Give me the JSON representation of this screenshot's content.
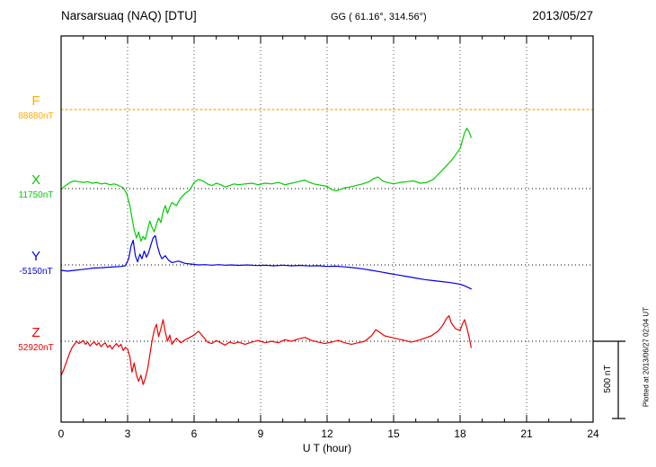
{
  "header": {
    "station": "Narsarsuaq (NAQ)  [DTU]",
    "gg": "GG ( 61.16°, 314.56°)",
    "date": "2013/05/27"
  },
  "axis": {
    "xlabel": "U T (hour)",
    "xticks": [
      0,
      3,
      6,
      9,
      12,
      15,
      18,
      21,
      24
    ],
    "grid_hours": [
      3,
      6,
      9,
      12,
      15,
      18,
      21
    ],
    "xmin": 0,
    "xmax": 24
  },
  "scalebar": {
    "label": "500 nT",
    "nT": 500
  },
  "footer_rotated": "Plotted at 2013/06/27 02:04 UT",
  "colors": {
    "F": "#ffaa00",
    "X": "#00cc00",
    "Y": "#0000ee",
    "Z": "#ee0000",
    "grid": "#555555",
    "frame": "#000000"
  },
  "channels": [
    {
      "id": "F",
      "label": "F",
      "value_label": "88880nT",
      "base": 88880
    },
    {
      "id": "X",
      "label": "X",
      "value_label": "11750nT",
      "base": 11750
    },
    {
      "id": "Y",
      "label": "Y",
      "value_label": "-5150nT",
      "base": -5150
    },
    {
      "id": "Z",
      "label": "Z",
      "value_label": "52920nT",
      "base": 52920
    }
  ],
  "chart_data": {
    "type": "line",
    "title": "Narsarsuaq (NAQ) magnetogram 2013/05/27",
    "xlabel": "U T (hour)",
    "xlim": [
      0,
      24
    ],
    "grid": "dotted baselines per channel, vertical dotted lines every 3 hours",
    "scale_nT_per_division": 500,
    "series": [
      {
        "name": "F",
        "channel": "F",
        "base": 88880,
        "style": "dotted",
        "points": [
          [
            0,
            88880
          ],
          [
            24,
            88880
          ]
        ]
      },
      {
        "name": "X",
        "channel": "X",
        "base": 11750,
        "style": "solid",
        "points": [
          [
            0,
            11745
          ],
          [
            0.2,
            11770
          ],
          [
            0.4,
            11790
          ],
          [
            0.6,
            11800
          ],
          [
            0.8,
            11795
          ],
          [
            1.0,
            11790
          ],
          [
            1.2,
            11795
          ],
          [
            1.4,
            11785
          ],
          [
            1.6,
            11790
          ],
          [
            1.8,
            11780
          ],
          [
            2.0,
            11785
          ],
          [
            2.2,
            11775
          ],
          [
            2.4,
            11780
          ],
          [
            2.6,
            11770
          ],
          [
            2.8,
            11755
          ],
          [
            2.95,
            11720
          ],
          [
            3.1,
            11640
          ],
          [
            3.2,
            11560
          ],
          [
            3.3,
            11480
          ],
          [
            3.4,
            11430
          ],
          [
            3.5,
            11470
          ],
          [
            3.6,
            11410
          ],
          [
            3.7,
            11440
          ],
          [
            3.8,
            11420
          ],
          [
            3.9,
            11480
          ],
          [
            4.0,
            11540
          ],
          [
            4.1,
            11500
          ],
          [
            4.2,
            11470
          ],
          [
            4.3,
            11520
          ],
          [
            4.4,
            11560
          ],
          [
            4.5,
            11530
          ],
          [
            4.6,
            11600
          ],
          [
            4.7,
            11640
          ],
          [
            4.8,
            11590
          ],
          [
            4.9,
            11630
          ],
          [
            5.0,
            11660
          ],
          [
            5.2,
            11640
          ],
          [
            5.4,
            11690
          ],
          [
            5.6,
            11720
          ],
          [
            5.8,
            11740
          ],
          [
            6.0,
            11790
          ],
          [
            6.2,
            11810
          ],
          [
            6.4,
            11800
          ],
          [
            6.6,
            11780
          ],
          [
            6.8,
            11770
          ],
          [
            7.0,
            11785
          ],
          [
            7.2,
            11775
          ],
          [
            7.4,
            11760
          ],
          [
            7.6,
            11770
          ],
          [
            7.8,
            11780
          ],
          [
            8.0,
            11775
          ],
          [
            8.3,
            11780
          ],
          [
            8.6,
            11785
          ],
          [
            8.9,
            11775
          ],
          [
            9.2,
            11785
          ],
          [
            9.5,
            11780
          ],
          [
            9.8,
            11790
          ],
          [
            10.1,
            11775
          ],
          [
            10.4,
            11785
          ],
          [
            10.7,
            11795
          ],
          [
            11.0,
            11805
          ],
          [
            11.2,
            11790
          ],
          [
            11.4,
            11780
          ],
          [
            11.6,
            11775
          ],
          [
            11.8,
            11770
          ],
          [
            12.0,
            11765
          ],
          [
            12.2,
            11745
          ],
          [
            12.4,
            11735
          ],
          [
            12.6,
            11745
          ],
          [
            12.8,
            11755
          ],
          [
            13.0,
            11760
          ],
          [
            13.3,
            11770
          ],
          [
            13.6,
            11780
          ],
          [
            13.9,
            11795
          ],
          [
            14.1,
            11815
          ],
          [
            14.3,
            11825
          ],
          [
            14.5,
            11800
          ],
          [
            14.7,
            11790
          ],
          [
            15.0,
            11780
          ],
          [
            15.3,
            11790
          ],
          [
            15.6,
            11795
          ],
          [
            15.9,
            11800
          ],
          [
            16.2,
            11785
          ],
          [
            16.5,
            11790
          ],
          [
            16.8,
            11810
          ],
          [
            17.0,
            11840
          ],
          [
            17.2,
            11870
          ],
          [
            17.4,
            11900
          ],
          [
            17.6,
            11930
          ],
          [
            17.8,
            11970
          ],
          [
            18.0,
            12010
          ],
          [
            18.1,
            12060
          ],
          [
            18.2,
            12110
          ],
          [
            18.3,
            12140
          ],
          [
            18.4,
            12120
          ],
          [
            18.5,
            12080
          ]
        ]
      },
      {
        "name": "Y",
        "channel": "Y",
        "base": -5150,
        "style": "solid",
        "points": [
          [
            0,
            -5185
          ],
          [
            0.3,
            -5190
          ],
          [
            0.6,
            -5185
          ],
          [
            0.9,
            -5180
          ],
          [
            1.2,
            -5175
          ],
          [
            1.5,
            -5170
          ],
          [
            1.8,
            -5168
          ],
          [
            2.1,
            -5165
          ],
          [
            2.4,
            -5162
          ],
          [
            2.7,
            -5160
          ],
          [
            2.9,
            -5155
          ],
          [
            3.05,
            -5110
          ],
          [
            3.15,
            -5030
          ],
          [
            3.25,
            -4990
          ],
          [
            3.35,
            -5090
          ],
          [
            3.45,
            -5130
          ],
          [
            3.55,
            -5080
          ],
          [
            3.65,
            -5110
          ],
          [
            3.75,
            -5060
          ],
          [
            3.85,
            -5100
          ],
          [
            3.95,
            -5070
          ],
          [
            4.05,
            -5020
          ],
          [
            4.15,
            -4975
          ],
          [
            4.25,
            -4960
          ],
          [
            4.35,
            -5030
          ],
          [
            4.45,
            -5080
          ],
          [
            4.55,
            -5110
          ],
          [
            4.7,
            -5090
          ],
          [
            4.85,
            -5120
          ],
          [
            5.0,
            -5135
          ],
          [
            5.3,
            -5125
          ],
          [
            5.6,
            -5140
          ],
          [
            5.9,
            -5145
          ],
          [
            6.2,
            -5150
          ],
          [
            6.5,
            -5148
          ],
          [
            6.8,
            -5152
          ],
          [
            7.1,
            -5148
          ],
          [
            7.4,
            -5152
          ],
          [
            7.7,
            -5150
          ],
          [
            8.0,
            -5153
          ],
          [
            8.4,
            -5150
          ],
          [
            8.8,
            -5154
          ],
          [
            9.2,
            -5152
          ],
          [
            9.6,
            -5156
          ],
          [
            10.0,
            -5152
          ],
          [
            10.4,
            -5156
          ],
          [
            10.8,
            -5153
          ],
          [
            11.2,
            -5157
          ],
          [
            11.6,
            -5155
          ],
          [
            12.0,
            -5160
          ],
          [
            12.4,
            -5158
          ],
          [
            12.8,
            -5163
          ],
          [
            13.2,
            -5168
          ],
          [
            13.6,
            -5175
          ],
          [
            14.0,
            -5185
          ],
          [
            14.4,
            -5195
          ],
          [
            14.8,
            -5205
          ],
          [
            15.2,
            -5215
          ],
          [
            15.6,
            -5225
          ],
          [
            16.0,
            -5235
          ],
          [
            16.4,
            -5245
          ],
          [
            16.8,
            -5252
          ],
          [
            17.2,
            -5258
          ],
          [
            17.6,
            -5265
          ],
          [
            18.0,
            -5275
          ],
          [
            18.2,
            -5285
          ],
          [
            18.35,
            -5295
          ],
          [
            18.5,
            -5305
          ]
        ]
      },
      {
        "name": "Z",
        "channel": "Z",
        "base": 52920,
        "style": "solid",
        "points": [
          [
            0,
            52700
          ],
          [
            0.1,
            52730
          ],
          [
            0.2,
            52770
          ],
          [
            0.3,
            52810
          ],
          [
            0.4,
            52850
          ],
          [
            0.5,
            52880
          ],
          [
            0.6,
            52900
          ],
          [
            0.7,
            52920
          ],
          [
            0.8,
            52905
          ],
          [
            0.9,
            52915
          ],
          [
            1.0,
            52925
          ],
          [
            1.1,
            52900
          ],
          [
            1.2,
            52915
          ],
          [
            1.3,
            52890
          ],
          [
            1.4,
            52905
          ],
          [
            1.5,
            52915
          ],
          [
            1.6,
            52895
          ],
          [
            1.7,
            52910
          ],
          [
            1.8,
            52885
          ],
          [
            1.9,
            52900
          ],
          [
            2.0,
            52910
          ],
          [
            2.1,
            52880
          ],
          [
            2.2,
            52895
          ],
          [
            2.3,
            52870
          ],
          [
            2.4,
            52890
          ],
          [
            2.5,
            52905
          ],
          [
            2.6,
            52885
          ],
          [
            2.7,
            52900
          ],
          [
            2.8,
            52860
          ],
          [
            2.9,
            52880
          ],
          [
            3.0,
            52870
          ],
          [
            3.1,
            52820
          ],
          [
            3.2,
            52720
          ],
          [
            3.3,
            52780
          ],
          [
            3.4,
            52700
          ],
          [
            3.5,
            52660
          ],
          [
            3.6,
            52700
          ],
          [
            3.7,
            52640
          ],
          [
            3.8,
            52680
          ],
          [
            3.9,
            52740
          ],
          [
            4.0,
            52830
          ],
          [
            4.1,
            52920
          ],
          [
            4.2,
            52990
          ],
          [
            4.3,
            53030
          ],
          [
            4.4,
            52950
          ],
          [
            4.5,
            53000
          ],
          [
            4.6,
            53060
          ],
          [
            4.7,
            52980
          ],
          [
            4.8,
            52920
          ],
          [
            4.9,
            52960
          ],
          [
            5.0,
            52900
          ],
          [
            5.2,
            52940
          ],
          [
            5.4,
            52910
          ],
          [
            5.6,
            52930
          ],
          [
            5.8,
            52945
          ],
          [
            6.0,
            52960
          ],
          [
            6.2,
            52985
          ],
          [
            6.4,
            52950
          ],
          [
            6.6,
            52915
          ],
          [
            6.8,
            52905
          ],
          [
            7.0,
            52925
          ],
          [
            7.2,
            52910
          ],
          [
            7.4,
            52895
          ],
          [
            7.6,
            52915
          ],
          [
            7.8,
            52905
          ],
          [
            8.0,
            52915
          ],
          [
            8.3,
            52900
          ],
          [
            8.6,
            52915
          ],
          [
            8.9,
            52925
          ],
          [
            9.2,
            52910
          ],
          [
            9.5,
            52920
          ],
          [
            9.8,
            52910
          ],
          [
            10.1,
            52930
          ],
          [
            10.4,
            52920
          ],
          [
            10.7,
            52935
          ],
          [
            11.0,
            52945
          ],
          [
            11.3,
            52925
          ],
          [
            11.6,
            52915
          ],
          [
            11.9,
            52905
          ],
          [
            12.2,
            52915
          ],
          [
            12.5,
            52925
          ],
          [
            12.8,
            52910
          ],
          [
            13.1,
            52900
          ],
          [
            13.4,
            52910
          ],
          [
            13.7,
            52920
          ],
          [
            14.0,
            52955
          ],
          [
            14.2,
            52995
          ],
          [
            14.4,
            52975
          ],
          [
            14.6,
            52955
          ],
          [
            14.9,
            52945
          ],
          [
            15.2,
            52935
          ],
          [
            15.5,
            52925
          ],
          [
            15.8,
            52915
          ],
          [
            16.1,
            52925
          ],
          [
            16.4,
            52940
          ],
          [
            16.7,
            52955
          ],
          [
            17.0,
            52985
          ],
          [
            17.2,
            53020
          ],
          [
            17.4,
            53070
          ],
          [
            17.5,
            53085
          ],
          [
            17.6,
            53040
          ],
          [
            17.8,
            53000
          ],
          [
            18.0,
            52990
          ],
          [
            18.1,
            53030
          ],
          [
            18.2,
            53060
          ],
          [
            18.3,
            53010
          ],
          [
            18.4,
            52950
          ],
          [
            18.5,
            52880
          ]
        ]
      }
    ]
  }
}
